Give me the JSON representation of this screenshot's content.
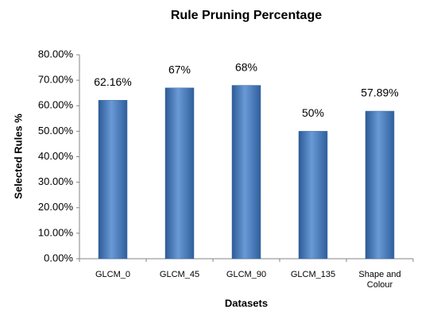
{
  "chart_data": {
    "type": "bar",
    "title": "Rule Pruning Percentage",
    "x_label": "Datasets",
    "y_label": "Selected Rules %",
    "categories": [
      "GLCM_0",
      "GLCM_45",
      "GLCM_90",
      "GLCM_135",
      "Shape and Colour"
    ],
    "values": [
      62.16,
      67,
      68,
      50,
      57.89
    ],
    "value_labels": [
      "62.16%",
      "67%",
      "68%",
      "50%",
      "57.89%"
    ],
    "color": "#4f81bd",
    "ylim": [
      0,
      80
    ],
    "yticks": [
      {
        "value": 0,
        "label": "0.00%"
      },
      {
        "value": 10,
        "label": "10.00%"
      },
      {
        "value": 20,
        "label": "20.00%"
      },
      {
        "value": 30,
        "label": "30.00%"
      },
      {
        "value": 40,
        "label": "40.00%"
      },
      {
        "value": 50,
        "label": "50.00%"
      },
      {
        "value": 60,
        "label": "60.00%"
      },
      {
        "value": 70,
        "label": "70.00%"
      },
      {
        "value": 80,
        "label": "80.00%"
      }
    ],
    "grid": false
  }
}
